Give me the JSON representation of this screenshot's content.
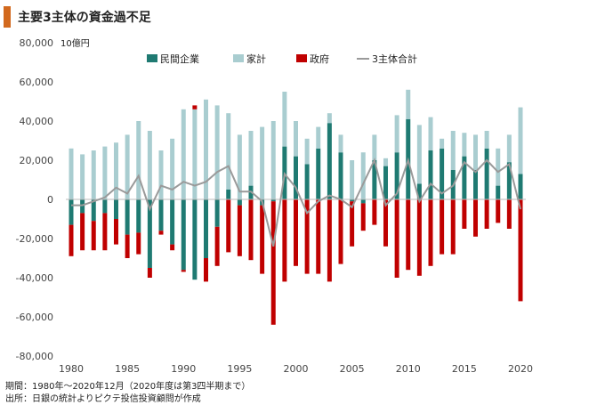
{
  "header": {
    "title": "主要3主体の資金過不足"
  },
  "notes": {
    "period": "期間：1980年～2020年12月（2020年度は第3四半期まで）",
    "source": "出所：日銀の統計よりピクテ投信投資顧問が作成"
  },
  "colors": {
    "title_bar": "#d2691e",
    "corporate": "#1f7a72",
    "household": "#a9cdd0",
    "government": "#c00000",
    "total_line": "#9a9a9a"
  },
  "chart_data": {
    "type": "bar",
    "stacked": true,
    "unit_label": "10億円",
    "x": [
      1980,
      1981,
      1982,
      1983,
      1984,
      1985,
      1986,
      1987,
      1988,
      1989,
      1990,
      1991,
      1992,
      1993,
      1994,
      1995,
      1996,
      1997,
      1998,
      1999,
      2000,
      2001,
      2002,
      2003,
      2004,
      2005,
      2006,
      2007,
      2008,
      2009,
      2010,
      2011,
      2012,
      2013,
      2014,
      2015,
      2016,
      2017,
      2018,
      2019,
      2020
    ],
    "x_ticks": [
      1980,
      1985,
      1990,
      1995,
      2000,
      2005,
      2010,
      2015,
      2020
    ],
    "ylim": [
      -80000,
      80000
    ],
    "y_ticks": [
      -80000,
      -60000,
      -40000,
      -20000,
      0,
      20000,
      40000,
      60000,
      80000
    ],
    "y_tick_labels": [
      "-80,000",
      "-60,000",
      "-40,000",
      "-20,000",
      "0",
      "20,000",
      "40,000",
      "60,000",
      "80,000"
    ],
    "legend_position": "top",
    "grid": false,
    "series": [
      {
        "name": "民間企業",
        "kind": "bar",
        "values": [
          -13000,
          -7000,
          -11000,
          -7000,
          -10000,
          -18000,
          -17000,
          -35000,
          -16000,
          -23000,
          -36000,
          -41000,
          -30000,
          -14000,
          5000,
          -3000,
          7000,
          -3000,
          -1000,
          27000,
          22000,
          18000,
          26000,
          39000,
          24000,
          -1000,
          -2000,
          20000,
          17000,
          24000,
          41000,
          8000,
          25000,
          26000,
          15000,
          22000,
          15000,
          26000,
          7000,
          19000,
          13000
        ]
      },
      {
        "name": "家計",
        "kind": "bar",
        "values": [
          26000,
          23000,
          25000,
          27000,
          29000,
          33000,
          40000,
          35000,
          25000,
          31000,
          46000,
          46000,
          51000,
          48000,
          39000,
          33000,
          28000,
          37000,
          40000,
          28000,
          18000,
          13000,
          11000,
          5000,
          9000,
          20000,
          24000,
          13000,
          4000,
          19000,
          15000,
          30000,
          17000,
          5000,
          20000,
          12000,
          18000,
          9000,
          19000,
          14000,
          34000
        ]
      },
      {
        "name": "政府",
        "kind": "bar",
        "values": [
          -16000,
          -19000,
          -15000,
          -19000,
          -13000,
          -12000,
          -11000,
          -5000,
          -2000,
          -3000,
          -1000,
          2000,
          -12000,
          -20000,
          -27000,
          -26000,
          -31000,
          -35000,
          -63000,
          -42000,
          -34000,
          -38000,
          -38000,
          -42000,
          -33000,
          -23000,
          -14000,
          -13000,
          -24000,
          -40000,
          -36000,
          -39000,
          -34000,
          -28000,
          -28000,
          -15000,
          -19000,
          -15000,
          -12000,
          -15000,
          -52000
        ]
      },
      {
        "name": "3主体合計",
        "kind": "line",
        "values": [
          -3000,
          -3000,
          -1000,
          1000,
          6000,
          3000,
          12000,
          -5000,
          7000,
          5000,
          9000,
          7000,
          9000,
          14000,
          17000,
          4000,
          4000,
          -1000,
          -24000,
          13000,
          6000,
          -7000,
          -1000,
          2000,
          0,
          -4000,
          8000,
          20000,
          -3000,
          3000,
          20000,
          -1000,
          8000,
          3000,
          7000,
          19000,
          14000,
          20000,
          14000,
          18000,
          -5000
        ]
      }
    ]
  }
}
